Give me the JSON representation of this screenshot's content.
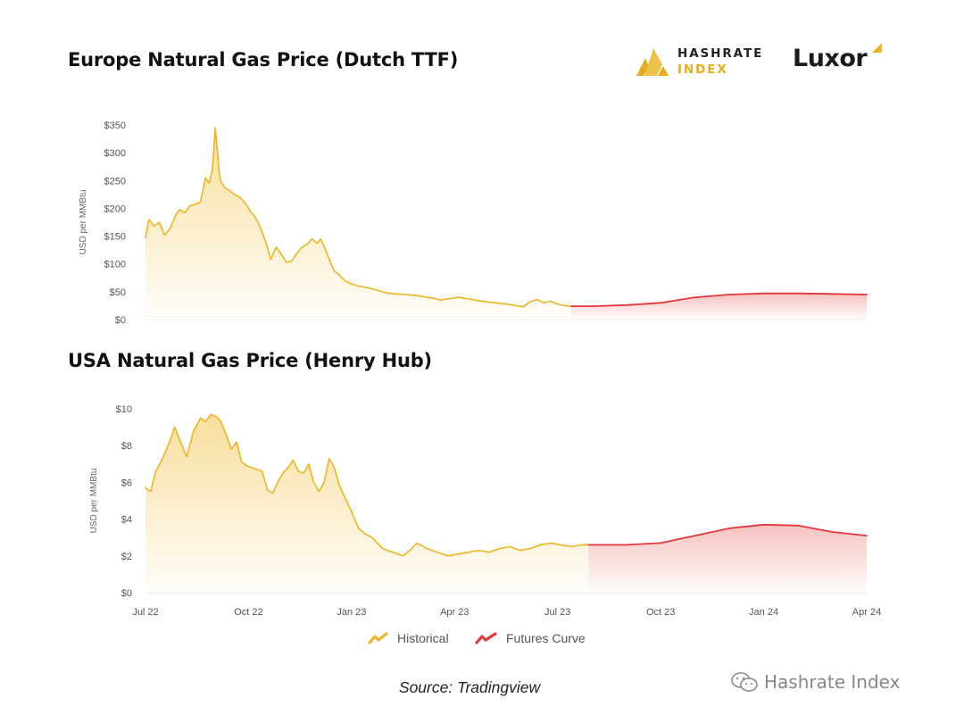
{
  "titles": {
    "europe": "Europe Natural Gas Price (Dutch TTF)",
    "usa": "USA Natural Gas Price (Henry Hub)"
  },
  "brand": {
    "hashrate_line1": "HASHRATE",
    "hashrate_line2": "INDEX",
    "luxor": "Luxor"
  },
  "legend": {
    "historical": "Historical",
    "futures": "Futures Curve"
  },
  "source": "Source: Tradingview",
  "watermark": "Hashrate Index",
  "colors": {
    "historical": "#EDB521",
    "futures": "#E5363B",
    "historical_fill": "#F7D98C",
    "futures_fill": "#F2AFA9"
  },
  "chart_data": [
    {
      "type": "area",
      "title": "Europe Natural Gas Price (Dutch TTF)",
      "ylabel": "USD per MMBtu",
      "xlabel": "",
      "ylim": [
        0,
        350
      ],
      "y_ticks": [
        0,
        50,
        100,
        150,
        200,
        250,
        300,
        350
      ],
      "y_tick_labels": [
        "$0",
        "$50",
        "$100",
        "$150",
        "$200",
        "$250",
        "$300",
        "$350"
      ],
      "x_ticks": [
        "Jul 22",
        "Oct 22",
        "Jan 23",
        "Apr 23",
        "Jul 23",
        "Oct 23",
        "Jan 24",
        "Apr 24"
      ],
      "x_tick_positions": [
        0,
        3,
        6,
        9,
        12,
        15,
        18,
        21
      ],
      "xlim": [
        0,
        21
      ],
      "series": [
        {
          "name": "Historical",
          "x": [
            0,
            0.1,
            0.25,
            0.4,
            0.55,
            0.7,
            0.9,
            1.0,
            1.15,
            1.3,
            1.45,
            1.6,
            1.75,
            1.85,
            1.95,
            2.03,
            2.1,
            2.15,
            2.2,
            2.3,
            2.45,
            2.6,
            2.75,
            2.9,
            3.05,
            3.15,
            3.25,
            3.35,
            3.5,
            3.65,
            3.8,
            3.95,
            4.1,
            4.25,
            4.4,
            4.55,
            4.7,
            4.85,
            5.0,
            5.1,
            5.2,
            5.35,
            5.5,
            5.65,
            5.8,
            5.95,
            6.2,
            6.5,
            6.8,
            7.0,
            7.3,
            7.6,
            7.9,
            8.2,
            8.4,
            8.6,
            8.75,
            8.9,
            9.1,
            9.3,
            9.6,
            9.9,
            10.2,
            10.5,
            10.8,
            11.0,
            11.2,
            11.4,
            11.6,
            11.8,
            12.0,
            12.2,
            12.4
          ],
          "values": [
            147,
            180,
            168,
            175,
            152,
            162,
            190,
            198,
            192,
            205,
            207,
            212,
            255,
            245,
            270,
            345,
            300,
            262,
            248,
            238,
            232,
            225,
            220,
            210,
            195,
            188,
            178,
            165,
            140,
            108,
            130,
            118,
            103,
            105,
            118,
            130,
            135,
            145,
            137,
            145,
            132,
            108,
            87,
            80,
            70,
            65,
            60,
            57,
            52,
            48,
            46,
            45,
            43,
            40,
            38,
            35,
            37,
            38,
            40,
            38,
            35,
            32,
            30,
            28,
            25,
            23,
            32,
            36,
            30,
            33,
            28,
            25,
            24
          ]
        },
        {
          "name": "Futures Curve",
          "x": [
            12.4,
            13.0,
            14.0,
            15.0,
            16.0,
            17.0,
            18.0,
            19.0,
            20.0,
            21.0
          ],
          "values": [
            24,
            24,
            26,
            30,
            40,
            45,
            47,
            47,
            46,
            45
          ]
        }
      ]
    },
    {
      "type": "area",
      "title": "USA Natural Gas Price (Henry Hub)",
      "ylabel": "USD per MMBtu",
      "xlabel": "",
      "ylim": [
        0,
        10
      ],
      "y_ticks": [
        0,
        2,
        4,
        6,
        8,
        10
      ],
      "y_tick_labels": [
        "$0",
        "$2",
        "$4",
        "$6",
        "$8",
        "$10"
      ],
      "x_ticks": [
        "Jul 22",
        "Oct 22",
        "Jan 23",
        "Apr 23",
        "Jul 23",
        "Oct 23",
        "Jan 24",
        "Apr 24"
      ],
      "x_tick_positions": [
        0,
        3,
        6,
        9,
        12,
        15,
        18,
        21
      ],
      "xlim": [
        0,
        21
      ],
      "series": [
        {
          "name": "Historical",
          "x": [
            0,
            0.15,
            0.3,
            0.5,
            0.7,
            0.85,
            1.0,
            1.2,
            1.4,
            1.6,
            1.75,
            1.9,
            2.05,
            2.2,
            2.35,
            2.5,
            2.65,
            2.8,
            2.95,
            3.1,
            3.25,
            3.4,
            3.55,
            3.7,
            3.85,
            4.0,
            4.15,
            4.3,
            4.45,
            4.6,
            4.75,
            4.9,
            5.05,
            5.2,
            5.35,
            5.5,
            5.65,
            5.8,
            6.0,
            6.2,
            6.4,
            6.6,
            6.9,
            7.2,
            7.5,
            7.7,
            7.9,
            8.2,
            8.5,
            8.8,
            9.1,
            9.4,
            9.7,
            10.0,
            10.3,
            10.6,
            10.9,
            11.2,
            11.5,
            11.8,
            12.1,
            12.4,
            12.7,
            12.9
          ],
          "values": [
            5.7,
            5.5,
            6.6,
            7.3,
            8.2,
            9.0,
            8.3,
            7.4,
            8.8,
            9.5,
            9.3,
            9.7,
            9.6,
            9.3,
            8.6,
            7.8,
            8.2,
            7.1,
            6.9,
            6.8,
            6.7,
            6.6,
            5.6,
            5.4,
            6.0,
            6.5,
            6.8,
            7.2,
            6.6,
            6.5,
            7.0,
            6.0,
            5.5,
            6.0,
            7.3,
            6.8,
            5.8,
            5.2,
            4.4,
            3.5,
            3.2,
            3.0,
            2.4,
            2.2,
            2.0,
            2.3,
            2.7,
            2.4,
            2.2,
            2.0,
            2.1,
            2.2,
            2.3,
            2.2,
            2.4,
            2.5,
            2.3,
            2.4,
            2.6,
            2.7,
            2.6,
            2.5,
            2.6,
            2.6
          ]
        },
        {
          "name": "Futures Curve",
          "x": [
            12.9,
            13.5,
            14.0,
            15.0,
            16.0,
            17.0,
            18.0,
            19.0,
            20.0,
            21.0
          ],
          "values": [
            2.6,
            2.6,
            2.6,
            2.7,
            3.1,
            3.5,
            3.7,
            3.65,
            3.3,
            3.1
          ]
        }
      ]
    }
  ]
}
